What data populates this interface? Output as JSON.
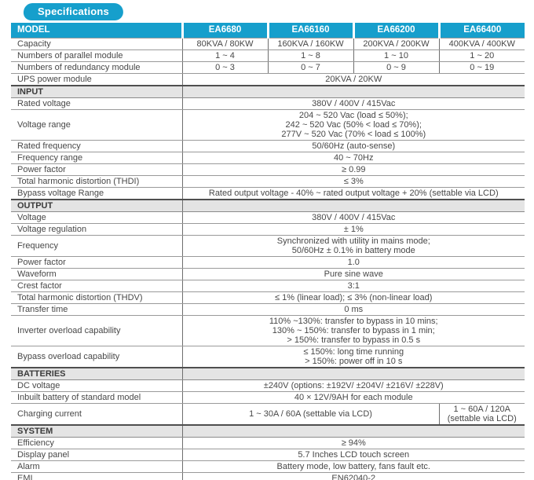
{
  "badge": {
    "label": "Specifications"
  },
  "colors": {
    "accent": "#169fcc",
    "section_bg": "#e4e4e4",
    "border_thin": "#9a9a9a",
    "border_thick": "#4f4f4f",
    "text": "#474747",
    "header_text": "#ffffff"
  },
  "table": {
    "header": {
      "label": "MODEL",
      "models": [
        "EA6680",
        "EA66160",
        "EA66200",
        "EA66400"
      ]
    },
    "rows": [
      {
        "type": "models",
        "label": "Capacity",
        "values": [
          "80KVA / 80KW",
          "160KVA / 160KW",
          "200KVA / 200KW",
          "400KVA / 400KW"
        ]
      },
      {
        "type": "models",
        "label": "Numbers of parallel module",
        "values": [
          "1 ~ 4",
          "1 ~ 8",
          "1 ~ 10",
          "1 ~ 20"
        ]
      },
      {
        "type": "models",
        "label": "Numbers of redundancy module",
        "values": [
          "0 ~ 3",
          "0 ~ 7",
          "0 ~ 9",
          "0 ~ 19"
        ]
      },
      {
        "type": "span",
        "label": "UPS power module",
        "value": "20KVA / 20KW"
      },
      {
        "type": "section",
        "label": "INPUT"
      },
      {
        "type": "span",
        "label": "Rated voltage",
        "value": "380V / 400V / 415Vac"
      },
      {
        "type": "span",
        "label": "Voltage range",
        "value": "204 ~ 520 Vac (load ≤ 50%);\n242 ~ 520 Vac (50% < load ≤ 70%);\n277V ~ 520 Vac (70% < load ≤ 100%)"
      },
      {
        "type": "span",
        "label": "Rated frequency",
        "value": "50/60Hz (auto-sense)"
      },
      {
        "type": "span",
        "label": "Frequency range",
        "value": "40 ~ 70Hz"
      },
      {
        "type": "span",
        "label": "Power factor",
        "value": "≥ 0.99"
      },
      {
        "type": "span",
        "label": "Total harmonic distortion (THDI)",
        "value": "≤ 3%"
      },
      {
        "type": "span",
        "label": "Bypass voltage Range",
        "value": "Rated output voltage - 40% ~ rated output voltage + 20% (settable via LCD)"
      },
      {
        "type": "section",
        "label": "OUTPUT"
      },
      {
        "type": "span",
        "label": "Voltage",
        "value": "380V / 400V / 415Vac"
      },
      {
        "type": "span",
        "label": "Voltage regulation",
        "value": "± 1%"
      },
      {
        "type": "span",
        "label": "Frequency",
        "value": "Synchronized with utility in mains mode;\n50/60Hz ± 0.1% in battery mode"
      },
      {
        "type": "span",
        "label": "Power factor",
        "value": "1.0"
      },
      {
        "type": "span",
        "label": "Waveform",
        "value": "Pure sine wave"
      },
      {
        "type": "span",
        "label": "Crest factor",
        "value": "3:1"
      },
      {
        "type": "span",
        "label": "Total harmonic distortion (THDV)",
        "value": "≤ 1% (linear load); ≤ 3% (non-linear load)"
      },
      {
        "type": "span",
        "label": "Transfer time",
        "value": "0 ms"
      },
      {
        "type": "span",
        "label": "Inverter overload capability",
        "value": "110% ~130%: transfer to bypass in 10 mins;\n130% ~ 150%: transfer to bypass in 1 min;\n> 150%: transfer to bypass in 0.5 s"
      },
      {
        "type": "span",
        "label": "Bypass overload capability",
        "value": "≤ 150%: long time running\n> 150%: power off in 10 s"
      },
      {
        "type": "section",
        "label": "BATTERIES"
      },
      {
        "type": "span",
        "label": "DC voltage",
        "value": "±240V (options: ±192V/ ±204V/ ±216V/ ±228V)"
      },
      {
        "type": "span",
        "label": "Inbuilt battery of standard model",
        "value": "40 × 12V/9AH for each module"
      },
      {
        "type": "split",
        "label": "Charging current",
        "value_main": "1 ~ 30A / 60A (settable via LCD)",
        "value_last": "1 ~ 60A / 120A\n(settable via LCD)"
      },
      {
        "type": "section",
        "label": "SYSTEM"
      },
      {
        "type": "span",
        "label": "Efficiency",
        "value": "≥ 94%"
      },
      {
        "type": "span",
        "label": "Display panel",
        "value": "5.7 Inches LCD touch screen"
      },
      {
        "type": "span",
        "label": "Alarm",
        "value": "Battery mode, low battery, fans fault etc."
      },
      {
        "type": "span",
        "label": "EMI",
        "value": "EN62040-2"
      }
    ]
  }
}
